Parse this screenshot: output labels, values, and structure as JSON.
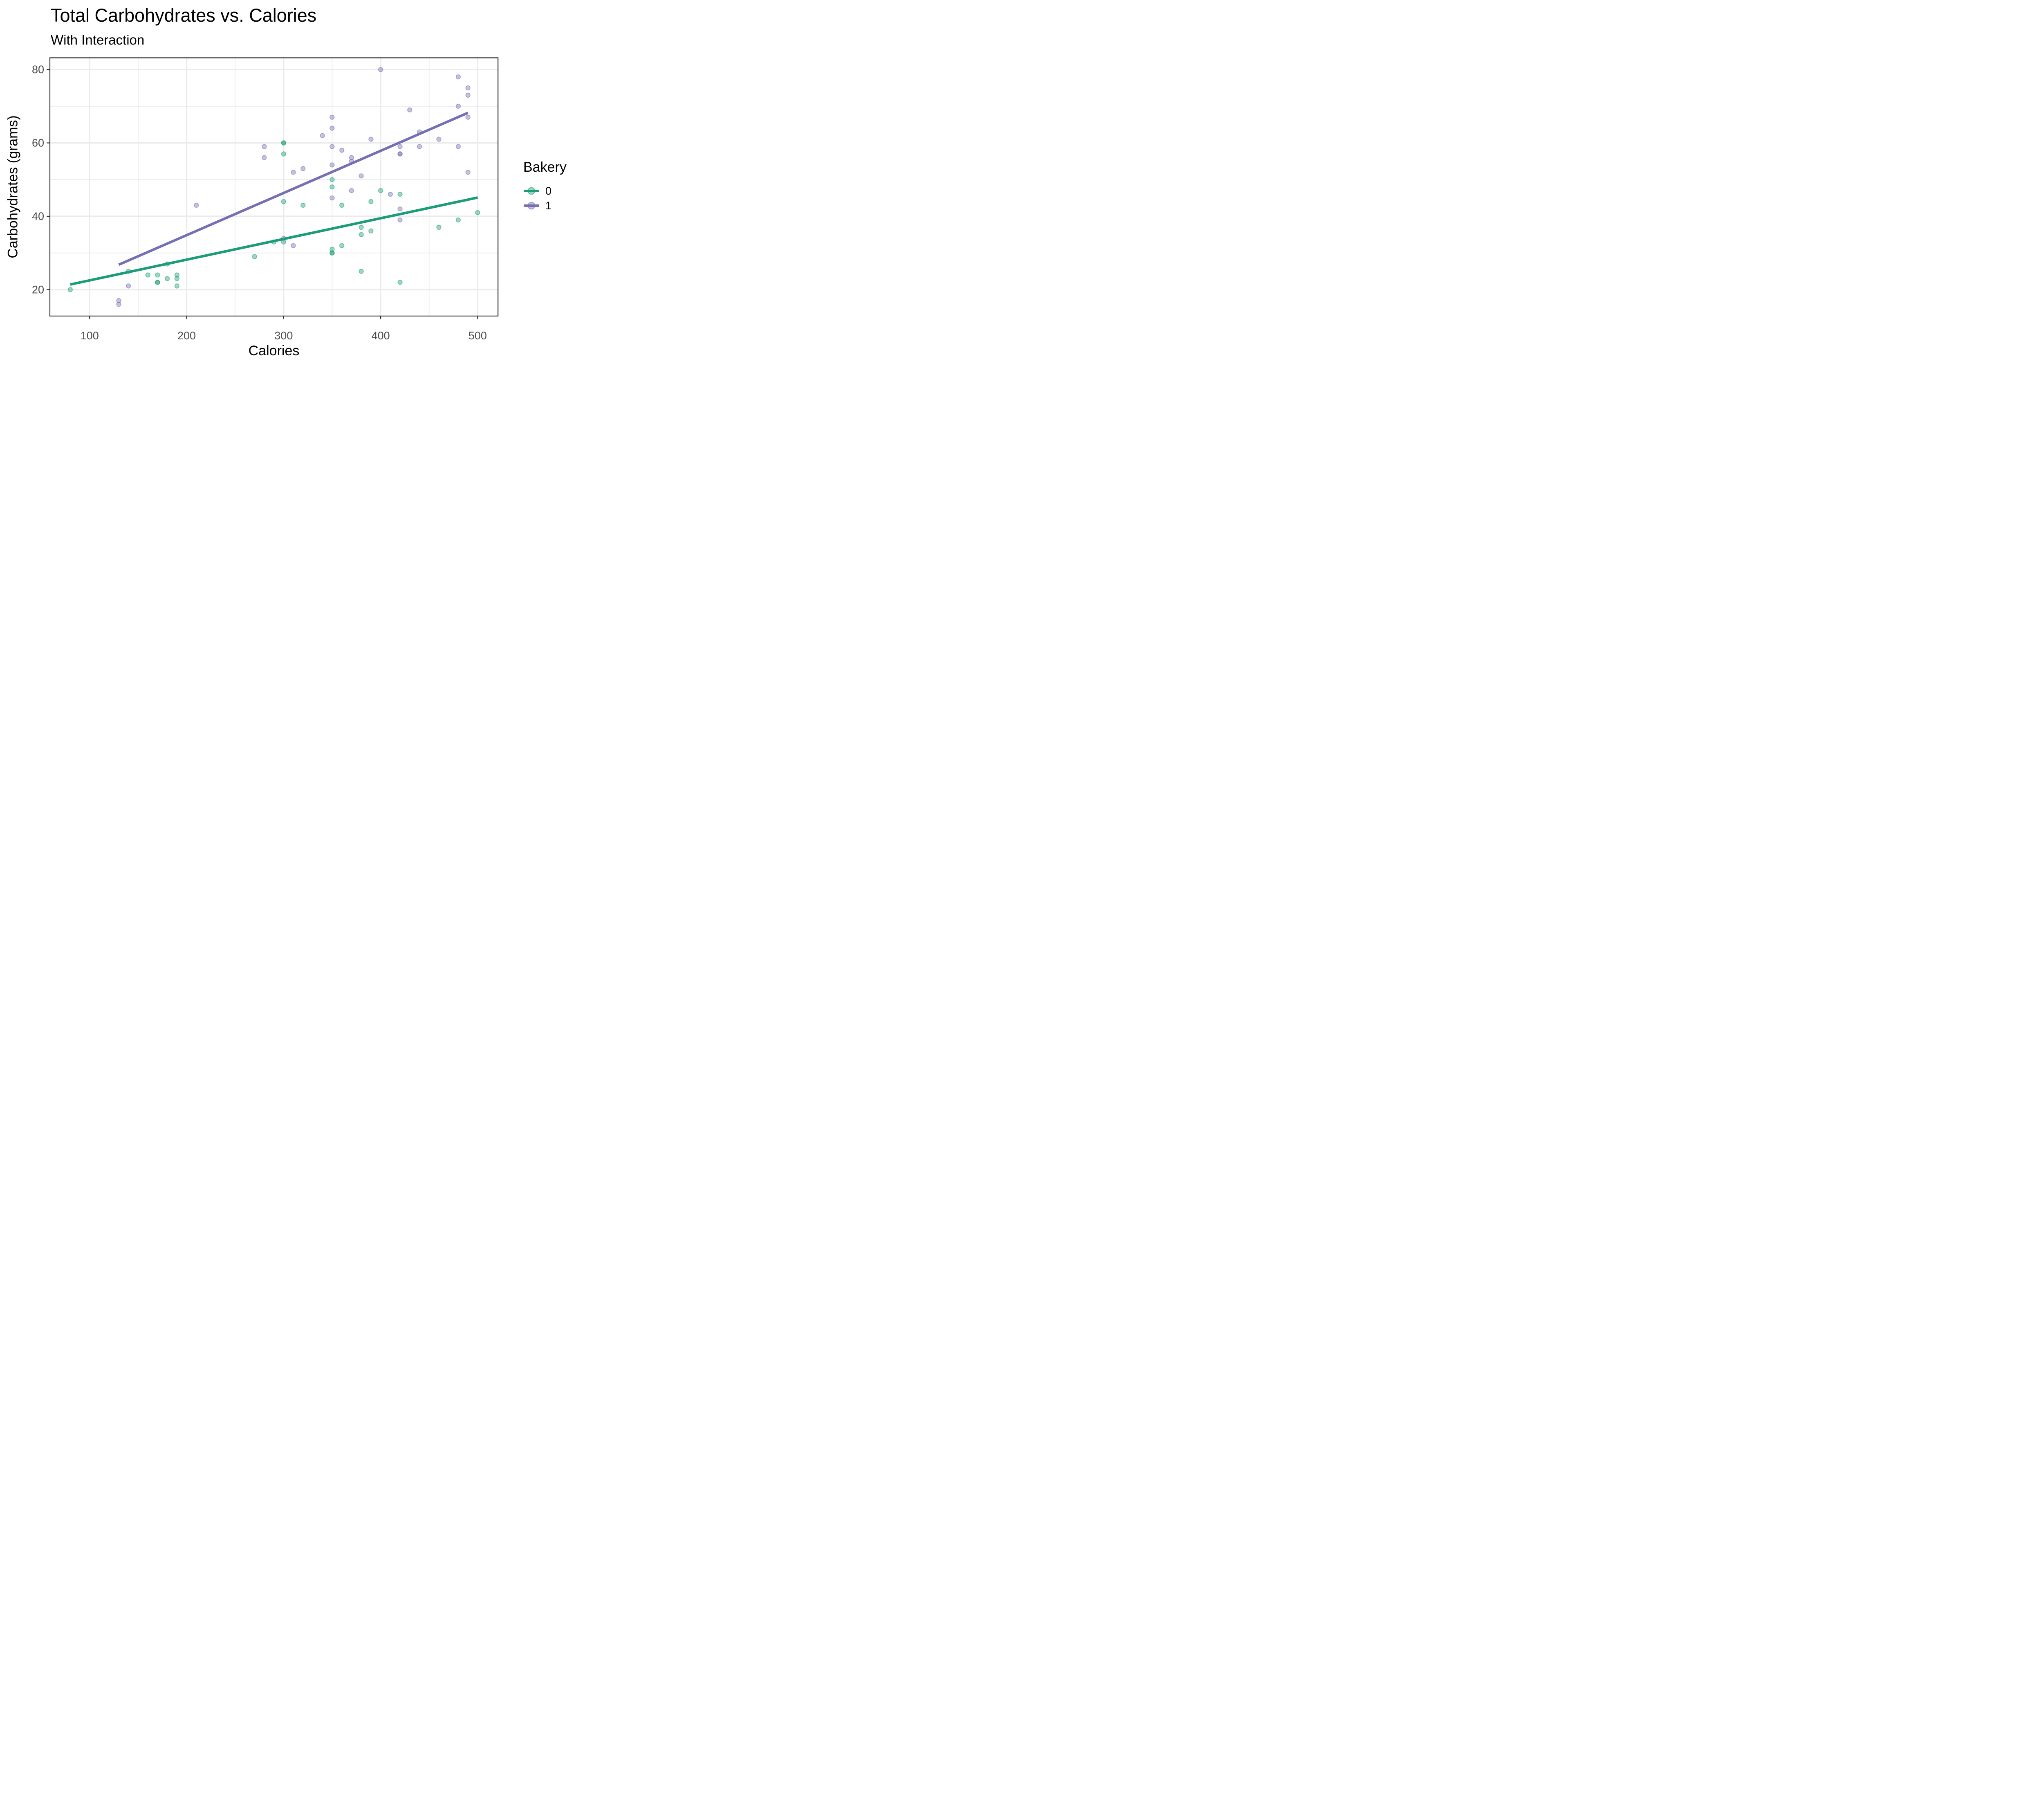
{
  "title": "Total Carbohydrates vs. Calories",
  "subtitle": "With Interaction",
  "x_axis": {
    "label": "Calories",
    "ticks": [
      100,
      200,
      300,
      400,
      500
    ],
    "minor_ticks": [
      150,
      250,
      350,
      450
    ],
    "domain": [
      59,
      521
    ]
  },
  "y_axis": {
    "label": "Carbohydrates (grams)",
    "ticks": [
      20,
      40,
      60,
      80
    ],
    "minor_ticks": [
      30,
      50,
      70
    ],
    "domain": [
      12.8,
      83.2
    ]
  },
  "legend": {
    "title": "Bakery",
    "position": "right",
    "entries": [
      {
        "label": "0",
        "color": "#1B9E77"
      },
      {
        "label": "1",
        "color": "#7570B3"
      }
    ]
  },
  "colors": {
    "series0": "#1B9E77",
    "series1": "#7570B3",
    "grid": "#EBEBEB",
    "panel_border": "#333333",
    "tick_mark": "#333333",
    "tick_label": "#4D4D4D",
    "background": "#FFFFFF"
  },
  "chart_data": {
    "type": "scatter",
    "title": "Total Carbohydrates vs. Calories",
    "subtitle": "With Interaction",
    "xlabel": "Calories",
    "ylabel": "Carbohydrates (grams)",
    "xlim": [
      59,
      521
    ],
    "ylim": [
      12.8,
      83.2
    ],
    "grid": true,
    "legend_position": "right",
    "series": [
      {
        "name": "0",
        "color": "#1B9E77",
        "points": [
          [
            80,
            20
          ],
          [
            140,
            25
          ],
          [
            160,
            24
          ],
          [
            170,
            24
          ],
          [
            170,
            22
          ],
          [
            170,
            22
          ],
          [
            180,
            27
          ],
          [
            180,
            23
          ],
          [
            190,
            24
          ],
          [
            190,
            23
          ],
          [
            190,
            21
          ],
          [
            270,
            29
          ],
          [
            290,
            33
          ],
          [
            300,
            33
          ],
          [
            300,
            44
          ],
          [
            300,
            57
          ],
          [
            300,
            60
          ],
          [
            300,
            60
          ],
          [
            320,
            43
          ],
          [
            350,
            31
          ],
          [
            350,
            30
          ],
          [
            350,
            30
          ],
          [
            350,
            48
          ],
          [
            350,
            50
          ],
          [
            360,
            32
          ],
          [
            360,
            43
          ],
          [
            380,
            25
          ],
          [
            380,
            35
          ],
          [
            380,
            37
          ],
          [
            390,
            36
          ],
          [
            390,
            44
          ],
          [
            400,
            47
          ],
          [
            420,
            22
          ],
          [
            420,
            46
          ],
          [
            460,
            37
          ],
          [
            480,
            39
          ],
          [
            500,
            41
          ]
        ],
        "trend_line": {
          "x1": 80,
          "y1": 21.4,
          "x2": 500,
          "y2": 45.1
        }
      },
      {
        "name": "1",
        "color": "#7570B3",
        "points": [
          [
            130,
            16
          ],
          [
            130,
            17
          ],
          [
            140,
            21
          ],
          [
            210,
            43
          ],
          [
            280,
            56
          ],
          [
            280,
            59
          ],
          [
            300,
            34
          ],
          [
            310,
            32
          ],
          [
            310,
            52
          ],
          [
            320,
            53
          ],
          [
            340,
            62
          ],
          [
            350,
            45
          ],
          [
            350,
            54
          ],
          [
            350,
            59
          ],
          [
            350,
            64
          ],
          [
            350,
            67
          ],
          [
            360,
            58
          ],
          [
            370,
            47
          ],
          [
            370,
            55
          ],
          [
            370,
            56
          ],
          [
            380,
            51
          ],
          [
            390,
            61
          ],
          [
            400,
            80
          ],
          [
            410,
            46
          ],
          [
            420,
            39
          ],
          [
            420,
            42
          ],
          [
            420,
            57
          ],
          [
            420,
            57
          ],
          [
            420,
            59
          ],
          [
            430,
            69
          ],
          [
            440,
            59
          ],
          [
            440,
            63
          ],
          [
            460,
            61
          ],
          [
            480,
            59
          ],
          [
            480,
            70
          ],
          [
            480,
            78
          ],
          [
            490,
            52
          ],
          [
            490,
            67
          ],
          [
            490,
            73
          ],
          [
            490,
            75
          ]
        ],
        "trend_line": {
          "x1": 130,
          "y1": 26.8,
          "x2": 490,
          "y2": 68.2
        }
      }
    ]
  }
}
